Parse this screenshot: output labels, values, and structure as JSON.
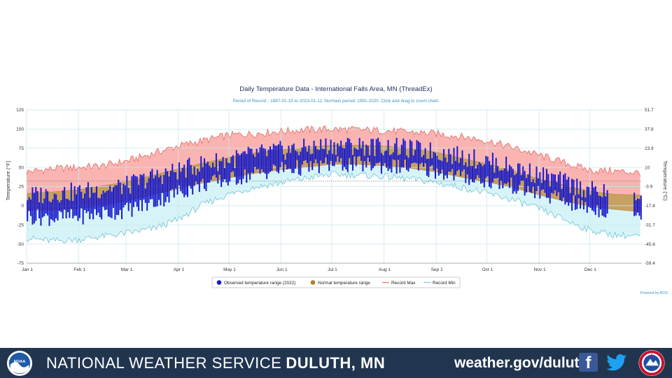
{
  "chart_data": {
    "type": "bar",
    "title": "Daily Temperature Data - International Falls Area, MN (ThreadEx)",
    "subtitle": "Period of Record - 1897-01-15 to 2023-01-11. Normals period: 1991-2020. Click and drag to zoom chart.",
    "ylabel": "Temperature (°F)",
    "y2label": "Temperature (°C)",
    "ylim": [
      -75,
      125
    ],
    "yticks": [
      "-75",
      "-50",
      "-25",
      "0",
      "25",
      "50",
      "75",
      "100",
      "125"
    ],
    "y2ticks": [
      "-59.4",
      "-45.6",
      "-31.7",
      "-17.8",
      "-3.9",
      "10",
      "23.9",
      "37.8",
      "51.7"
    ],
    "x_ticks": [
      "Jan 1",
      "Feb 1",
      "Mar 1",
      "Apr 1",
      "May 1",
      "Jun 1",
      "Jul 1",
      "Aug 1",
      "Sep 1",
      "Oct 1",
      "Nov 1",
      "Dec 1"
    ],
    "x_tick_days": [
      0,
      31,
      59,
      90,
      120,
      151,
      181,
      212,
      243,
      273,
      304,
      334
    ],
    "x_range_days": [
      0,
      365
    ],
    "grid": true,
    "legend_position": "bottom-center",
    "legend": [
      "Observed temperature range (2022)",
      "Normal temperature range",
      "Record Max",
      "Record Min"
    ],
    "credit": "Powered by ACIS",
    "colors": {
      "observed": "#1a1acc",
      "normal": "#c8a060",
      "record_max_line": "#e8736b",
      "record_max_fill": "#f9b4b2",
      "record_min_line": "#7ec8d8",
      "record_min_fill": "#d6f4f8"
    },
    "series": [
      {
        "name": "Record Max",
        "x": [
          0,
          15,
          31,
          45,
          59,
          75,
          90,
          105,
          120,
          135,
          151,
          166,
          181,
          196,
          212,
          227,
          243,
          258,
          273,
          288,
          304,
          319,
          334,
          349,
          364
        ],
        "values": [
          44,
          48,
          50,
          52,
          58,
          68,
          78,
          85,
          92,
          94,
          97,
          99,
          100,
          99,
          98,
          96,
          94,
          90,
          85,
          76,
          66,
          56,
          46,
          45,
          43
        ]
      },
      {
        "name": "Record Min",
        "x": [
          0,
          15,
          31,
          45,
          59,
          75,
          90,
          105,
          120,
          135,
          151,
          166,
          181,
          196,
          212,
          227,
          243,
          258,
          273,
          288,
          304,
          319,
          334,
          349,
          364
        ],
        "values": [
          -42,
          -46,
          -44,
          -40,
          -36,
          -30,
          -18,
          2,
          15,
          24,
          30,
          36,
          41,
          40,
          38,
          35,
          30,
          24,
          16,
          8,
          -4,
          -18,
          -32,
          -38,
          -40
        ]
      },
      {
        "name": "Normal temperature range",
        "x": [
          0,
          15,
          31,
          45,
          59,
          75,
          90,
          105,
          120,
          135,
          151,
          166,
          181,
          196,
          212,
          227,
          243,
          258,
          273,
          288,
          304,
          319,
          334,
          349,
          364
        ],
        "high": [
          16,
          18,
          21,
          26,
          31,
          40,
          48,
          56,
          63,
          69,
          73,
          76,
          79,
          79,
          78,
          75,
          70,
          62,
          55,
          46,
          35,
          27,
          19,
          15,
          14
        ],
        "low": [
          -6,
          -6,
          -4,
          0,
          6,
          14,
          22,
          30,
          36,
          42,
          47,
          50,
          54,
          54,
          52,
          49,
          44,
          37,
          31,
          24,
          14,
          6,
          -1,
          -5,
          -8
        ]
      }
    ],
    "observed_2022": {
      "name": "Observed temperature range (2022)",
      "anchor_days": [
        0,
        15,
        31,
        45,
        59,
        75,
        90,
        105,
        120,
        135,
        151,
        166,
        181,
        196,
        212,
        227,
        243,
        258,
        273,
        288,
        304,
        319,
        334,
        349,
        364
      ],
      "typical_high": [
        13,
        16,
        18,
        22,
        26,
        38,
        46,
        55,
        60,
        67,
        72,
        75,
        79,
        78,
        77,
        74,
        70,
        64,
        58,
        50,
        40,
        30,
        20,
        15,
        14
      ],
      "typical_low": [
        -14,
        -16,
        -14,
        -10,
        -6,
        4,
        18,
        28,
        34,
        42,
        48,
        50,
        54,
        54,
        52,
        50,
        45,
        38,
        32,
        26,
        16,
        6,
        -4,
        -8,
        -10
      ],
      "last_day": 344,
      "last_days_start": 360,
      "last_days_end": 364
    }
  },
  "footer": {
    "agency_name": "NATIONAL WEATHER SERVICE",
    "office": "DULUTH, MN",
    "url": "weather.gov/duluth",
    "icons": [
      "noaa-logo",
      "facebook-icon",
      "twitter-icon",
      "nws-logo"
    ]
  }
}
